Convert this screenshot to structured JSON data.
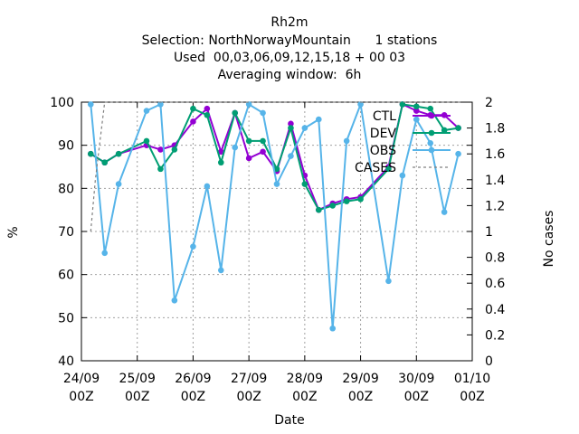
{
  "chart_data": {
    "type": "line",
    "title_lines": [
      "Rh2m",
      "Selection: NorthNorwayMountain      1 stations",
      "Used  00,03,06,09,12,15,18 + 00 03",
      "Averaging window:  6h"
    ],
    "xlabel": "Date",
    "ylabel": "%",
    "y2label": "No cases",
    "ylim": [
      40,
      100
    ],
    "y2lim": [
      0,
      2
    ],
    "xlim": [
      0,
      21
    ],
    "x_ticks": [
      {
        "x": 0,
        "line1": "24/09",
        "line2": "00Z"
      },
      {
        "x": 3,
        "line1": "25/09",
        "line2": "00Z"
      },
      {
        "x": 6,
        "line1": "26/09",
        "line2": "00Z"
      },
      {
        "x": 9,
        "line1": "27/09",
        "line2": "00Z"
      },
      {
        "x": 12,
        "line1": "28/09",
        "line2": "00Z"
      },
      {
        "x": 15,
        "line1": "29/09",
        "line2": "00Z"
      },
      {
        "x": 18,
        "line1": "30/09",
        "line2": "00Z"
      },
      {
        "x": 21,
        "line1": "01/10",
        "line2": "00Z"
      }
    ],
    "y_ticks": [
      40,
      50,
      60,
      70,
      80,
      90,
      100
    ],
    "y2_ticks": [
      "0",
      "0.2",
      "0.4",
      "0.6",
      "0.8",
      "1",
      "1.2",
      "1.4",
      "1.6",
      "1.8",
      "2"
    ],
    "grid": true,
    "legend_position": "top-right",
    "series": [
      {
        "name": "CTL",
        "color": "#9400d3",
        "marker": "circle",
        "x": [
          0.5,
          1.25,
          2,
          3.5,
          4.25,
          5,
          6,
          6.75,
          7.5,
          8.25,
          9,
          9.75,
          10.5,
          11.25,
          12,
          12.75,
          13.5,
          14.25,
          15,
          16.5,
          17.25,
          18,
          18.75,
          19.5,
          20.25
        ],
        "values": [
          88,
          86,
          88,
          90,
          89,
          90,
          95.5,
          98.5,
          88.5,
          97.5,
          87,
          88.5,
          84,
          95,
          83,
          75,
          76.5,
          77.5,
          78,
          85,
          99.5,
          98,
          97,
          97,
          94
        ]
      },
      {
        "name": "DEV",
        "color": "#009e73",
        "marker": "circle",
        "x": [
          0.5,
          1.25,
          2,
          3.5,
          4.25,
          5,
          6,
          6.75,
          7.5,
          8.25,
          9,
          9.75,
          10.5,
          11.25,
          12,
          12.75,
          13.5,
          14.25,
          15,
          16.5,
          17.25,
          18,
          18.75,
          19.5,
          20.25
        ],
        "values": [
          88,
          86,
          88,
          91,
          84.5,
          89,
          98.5,
          97,
          86,
          97.5,
          91,
          91,
          84.5,
          94,
          81,
          75,
          76,
          77,
          77.5,
          84.5,
          99.5,
          99,
          98.5,
          93.5,
          94
        ]
      },
      {
        "name": "OBS",
        "color": "#56b4e9",
        "marker": "circle",
        "x": [
          0.5,
          1.25,
          2,
          3.5,
          4.25,
          5,
          6,
          6.75,
          7.5,
          8.25,
          9,
          9.75,
          10.5,
          11.25,
          12,
          12.75,
          13.5,
          14.25,
          15,
          16.5,
          17.25,
          18,
          18.75,
          19.5,
          20.25
        ],
        "values": [
          99.5,
          65,
          81,
          98,
          99.5,
          54,
          66.5,
          80.5,
          61,
          89.5,
          99.5,
          97.5,
          81,
          87.5,
          94,
          96,
          47.5,
          91,
          99.5,
          58.5,
          83,
          96,
          90.5,
          74.5,
          88
        ]
      },
      {
        "name": "CASES",
        "color": "#808080",
        "dashed": true,
        "axis": "y2",
        "x": [
          0.5,
          0.75,
          1.25,
          20.5
        ],
        "values": [
          1,
          1.4,
          2,
          2
        ]
      }
    ]
  }
}
